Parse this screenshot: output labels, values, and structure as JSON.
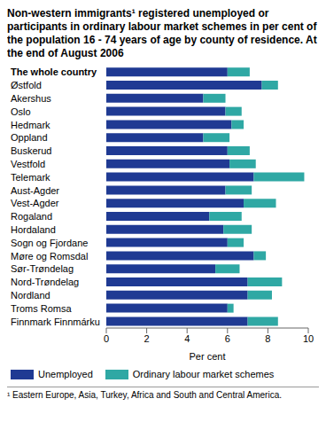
{
  "chart_data": {
    "type": "bar",
    "orientation": "horizontal",
    "stacked": true,
    "grid": false,
    "title": "Non-western immigrants¹ registered unemployed or participants in ordinary labour market schemes in per cent of the population 16 - 74 years of age by county of residence. At the end of August 2006",
    "x_label": "Per cent",
    "footnote": "¹ Eastern Europe, Asia, Turkey, Africa and South and Central America.",
    "legend": "bottom",
    "categories": [
      "The whole country",
      "Østfold",
      "Akershus",
      "Oslo",
      "Hedmark",
      "Oppland",
      "Buskerud",
      "Vestfold",
      "Telemark",
      "Aust-Agder",
      "Vest-Agder",
      "Rogaland",
      "Hordaland",
      "Sogn og Fjordane",
      "Møre og Romsdal",
      "Sør-Trøndelag",
      "Nord-Trøndelag",
      "Nordland",
      "Troms Romsa",
      "Finnmark Finnmárku"
    ],
    "series": [
      {
        "name": "Unemployed",
        "color": "#1f3a93",
        "values": [
          6.0,
          7.7,
          4.8,
          5.9,
          6.2,
          4.8,
          6.0,
          6.1,
          7.3,
          5.9,
          6.8,
          5.1,
          5.8,
          6.0,
          7.3,
          5.4,
          7.0,
          7.0,
          6.0,
          7.0
        ]
      },
      {
        "name": "Ordinary labour market schemes",
        "color": "#2fa8a4",
        "values": [
          1.1,
          0.8,
          1.1,
          0.8,
          0.6,
          1.3,
          1.1,
          1.3,
          2.5,
          1.3,
          1.6,
          1.6,
          1.4,
          0.8,
          0.6,
          1.2,
          1.7,
          1.2,
          0.3,
          1.5
        ]
      }
    ],
    "xlim": [
      0,
      10
    ],
    "xticks": [
      0,
      2,
      4,
      6,
      8,
      10
    ]
  }
}
